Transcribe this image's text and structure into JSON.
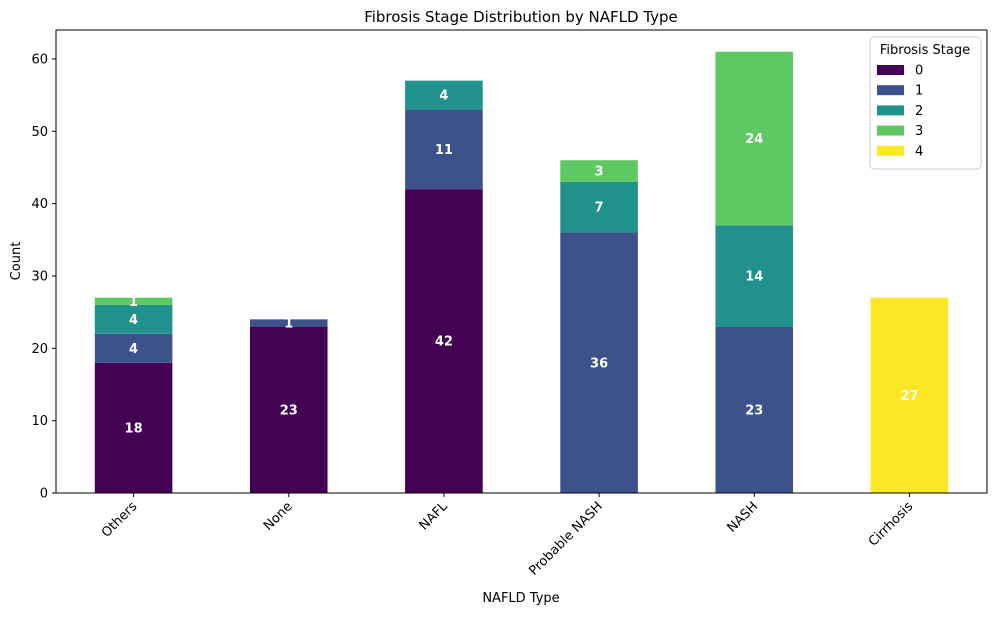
{
  "chart_data": {
    "type": "bar",
    "stacked": true,
    "title": "Fibrosis Stage Distribution by NAFLD Type",
    "xlabel": "NAFLD Type",
    "ylabel": "Count",
    "ylim": [
      0,
      64
    ],
    "yticks": [
      0,
      10,
      20,
      30,
      40,
      50,
      60
    ],
    "grid": false,
    "legend": {
      "title": "Fibrosis Stage",
      "placement": "top-right"
    },
    "categories": [
      "Others",
      "None",
      "NAFL",
      "Probable NASH",
      "NASH",
      "Cirrhosis"
    ],
    "series": [
      {
        "name": "0",
        "color": "#440154",
        "values": [
          18,
          23,
          42,
          0,
          0,
          0
        ]
      },
      {
        "name": "1",
        "color": "#3b528b",
        "values": [
          4,
          1,
          11,
          36,
          23,
          0
        ]
      },
      {
        "name": "2",
        "color": "#21918c",
        "values": [
          4,
          0,
          4,
          7,
          14,
          0
        ]
      },
      {
        "name": "3",
        "color": "#5ec962",
        "values": [
          1,
          0,
          0,
          3,
          24,
          0
        ]
      },
      {
        "name": "4",
        "color": "#fde725",
        "values": [
          0,
          0,
          0,
          0,
          0,
          27
        ]
      }
    ]
  }
}
